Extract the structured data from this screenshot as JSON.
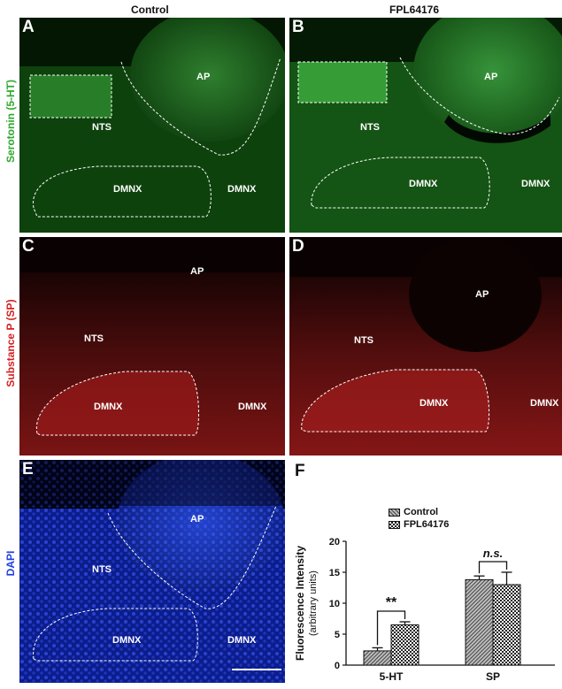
{
  "columns": {
    "left": "Control",
    "right": "FPL64176"
  },
  "rows": {
    "serotonin": {
      "label": "Serotonin (5-HT)",
      "color": "#2ea82e"
    },
    "substance_p": {
      "label": "Substance P (SP)",
      "color": "#d42020"
    },
    "dapi": {
      "label": "DAPI",
      "color": "#1f3fe0"
    }
  },
  "panels": {
    "A": {
      "letter": "A",
      "labels": {
        "ap": "AP",
        "nts": "NTS",
        "dmnx1": "DMNX",
        "dmnx2": "DMNX"
      }
    },
    "B": {
      "letter": "B",
      "labels": {
        "ap": "AP",
        "nts": "NTS",
        "dmnx1": "DMNX",
        "dmnx2": "DMNX"
      }
    },
    "C": {
      "letter": "C",
      "labels": {
        "ap": "AP",
        "nts": "NTS",
        "dmnx1": "DMNX",
        "dmnx2": "DMNX"
      }
    },
    "D": {
      "letter": "D",
      "labels": {
        "ap": "AP",
        "nts": "NTS",
        "dmnx1": "DMNX",
        "dmnx2": "DMNX"
      }
    },
    "E": {
      "letter": "E",
      "labels": {
        "ap": "AP",
        "nts": "NTS",
        "dmnx1": "DMNX",
        "dmnx2": "DMNX"
      }
    }
  },
  "chart_panel_letter": "F",
  "chart_data": {
    "type": "bar",
    "title": "",
    "xlabel": "",
    "ylabel": "Fluorescence Intensity",
    "ylabel_sub": "(arbitrary units)",
    "categories": [
      "5-HT",
      "SP"
    ],
    "series": [
      {
        "name": "Control",
        "values": [
          2.3,
          13.8
        ],
        "errors": [
          0.5,
          0.6
        ],
        "pattern": "diagonal"
      },
      {
        "name": "FPL64176",
        "values": [
          6.5,
          13.0
        ],
        "errors": [
          0.5,
          2.0
        ],
        "pattern": "checker"
      }
    ],
    "ylim": [
      0,
      20
    ],
    "yticks": [
      0,
      5,
      10,
      15,
      20
    ],
    "significance": [
      "**",
      "n.s."
    ],
    "legend_position": "top-left",
    "grid": false
  }
}
